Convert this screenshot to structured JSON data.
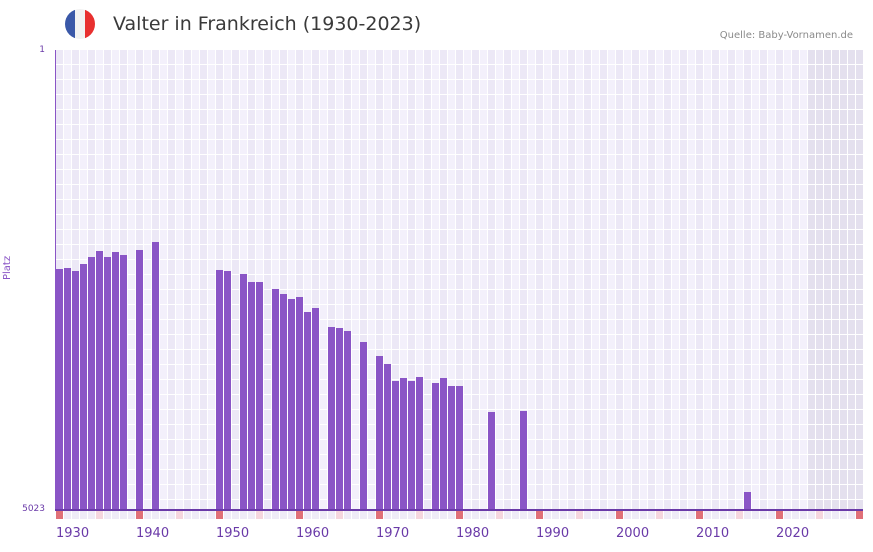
{
  "header": {
    "title": "Valter in Frankreich (1930-2023)",
    "source": "Quelle: Baby-Vornamen.de",
    "flag_colors": [
      "#3a58a8",
      "#f2f2f2",
      "#e8302f"
    ]
  },
  "axis": {
    "y_top": "1",
    "y_bottom": "5023",
    "y_label": "Platz",
    "x_ticks": [
      "1930",
      "1940",
      "1950",
      "1960",
      "1970",
      "1980",
      "1990",
      "2000",
      "2010",
      "2020"
    ]
  },
  "colors": {
    "bar": "#8a55c6",
    "axis": "#6a3aa8",
    "grid_light": "#f3f0fb",
    "grid_dark": "#ece8f6",
    "grid_future": "#e4e0ee",
    "marker_decade": "#e07078",
    "marker_half": "#f5d6de",
    "marker_other": "#efebf7"
  },
  "chart_data": {
    "type": "bar",
    "title": "Valter in Frankreich (1930-2023)",
    "xlabel": "",
    "ylabel": "Platz",
    "ylim": [
      5023,
      1
    ],
    "y_inverted": true,
    "x_range": [
      1930,
      2030
    ],
    "shaded_future_from": 2024,
    "grid": true,
    "legend": null,
    "categories": [
      1930,
      1931,
      1932,
      1933,
      1934,
      1935,
      1936,
      1937,
      1938,
      1940,
      1942,
      1950,
      1951,
      1953,
      1954,
      1955,
      1957,
      1958,
      1959,
      1960,
      1961,
      1962,
      1964,
      1965,
      1966,
      1968,
      1970,
      1971,
      1972,
      1973,
      1974,
      1975,
      1977,
      1978,
      1979,
      1980,
      1984,
      1988,
      2016
    ],
    "values": [
      2392,
      2381,
      2414,
      2337,
      2261,
      2195,
      2261,
      2206,
      2239,
      2184,
      2097,
      2403,
      2414,
      2447,
      2534,
      2534,
      2610,
      2665,
      2719,
      2698,
      2861,
      2818,
      3025,
      3036,
      3069,
      3189,
      3342,
      3429,
      3615,
      3582,
      3615,
      3571,
      3636,
      3582,
      3669,
      3669,
      3953,
      3942,
      4826
    ]
  }
}
